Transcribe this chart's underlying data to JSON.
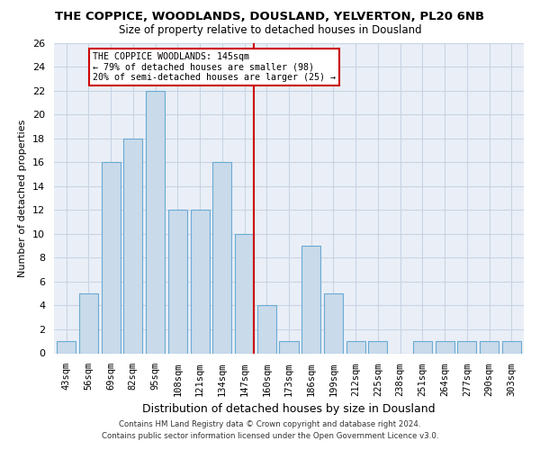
{
  "title": "THE COPPICE, WOODLANDS, DOUSLAND, YELVERTON, PL20 6NB",
  "subtitle": "Size of property relative to detached houses in Dousland",
  "xlabel": "Distribution of detached houses by size in Dousland",
  "ylabel": "Number of detached properties",
  "categories": [
    "43sqm",
    "56sqm",
    "69sqm",
    "82sqm",
    "95sqm",
    "108sqm",
    "121sqm",
    "134sqm",
    "147sqm",
    "160sqm",
    "173sqm",
    "186sqm",
    "199sqm",
    "212sqm",
    "225sqm",
    "238sqm",
    "251sqm",
    "264sqm",
    "277sqm",
    "290sqm",
    "303sqm"
  ],
  "values": [
    1,
    5,
    16,
    18,
    22,
    12,
    12,
    16,
    10,
    4,
    1,
    9,
    5,
    1,
    1,
    0,
    1,
    1,
    1,
    1,
    1
  ],
  "bar_color": "#c9daea",
  "bar_edge_color": "#6aaad4",
  "reference_line_color": "#cc0000",
  "annotation_text": "THE COPPICE WOODLANDS: 145sqm\n← 79% of detached houses are smaller (98)\n20% of semi-detached houses are larger (25) →",
  "annotation_box_color": "#ffffff",
  "annotation_box_edge_color": "#cc0000",
  "ylim": [
    0,
    26
  ],
  "yticks": [
    0,
    2,
    4,
    6,
    8,
    10,
    12,
    14,
    16,
    18,
    20,
    22,
    24,
    26
  ],
  "grid_color": "#c8d4e4",
  "background_color": "#eaeff7",
  "footer1": "Contains HM Land Registry data © Crown copyright and database right 2024.",
  "footer2": "Contains public sector information licensed under the Open Government Licence v3.0."
}
